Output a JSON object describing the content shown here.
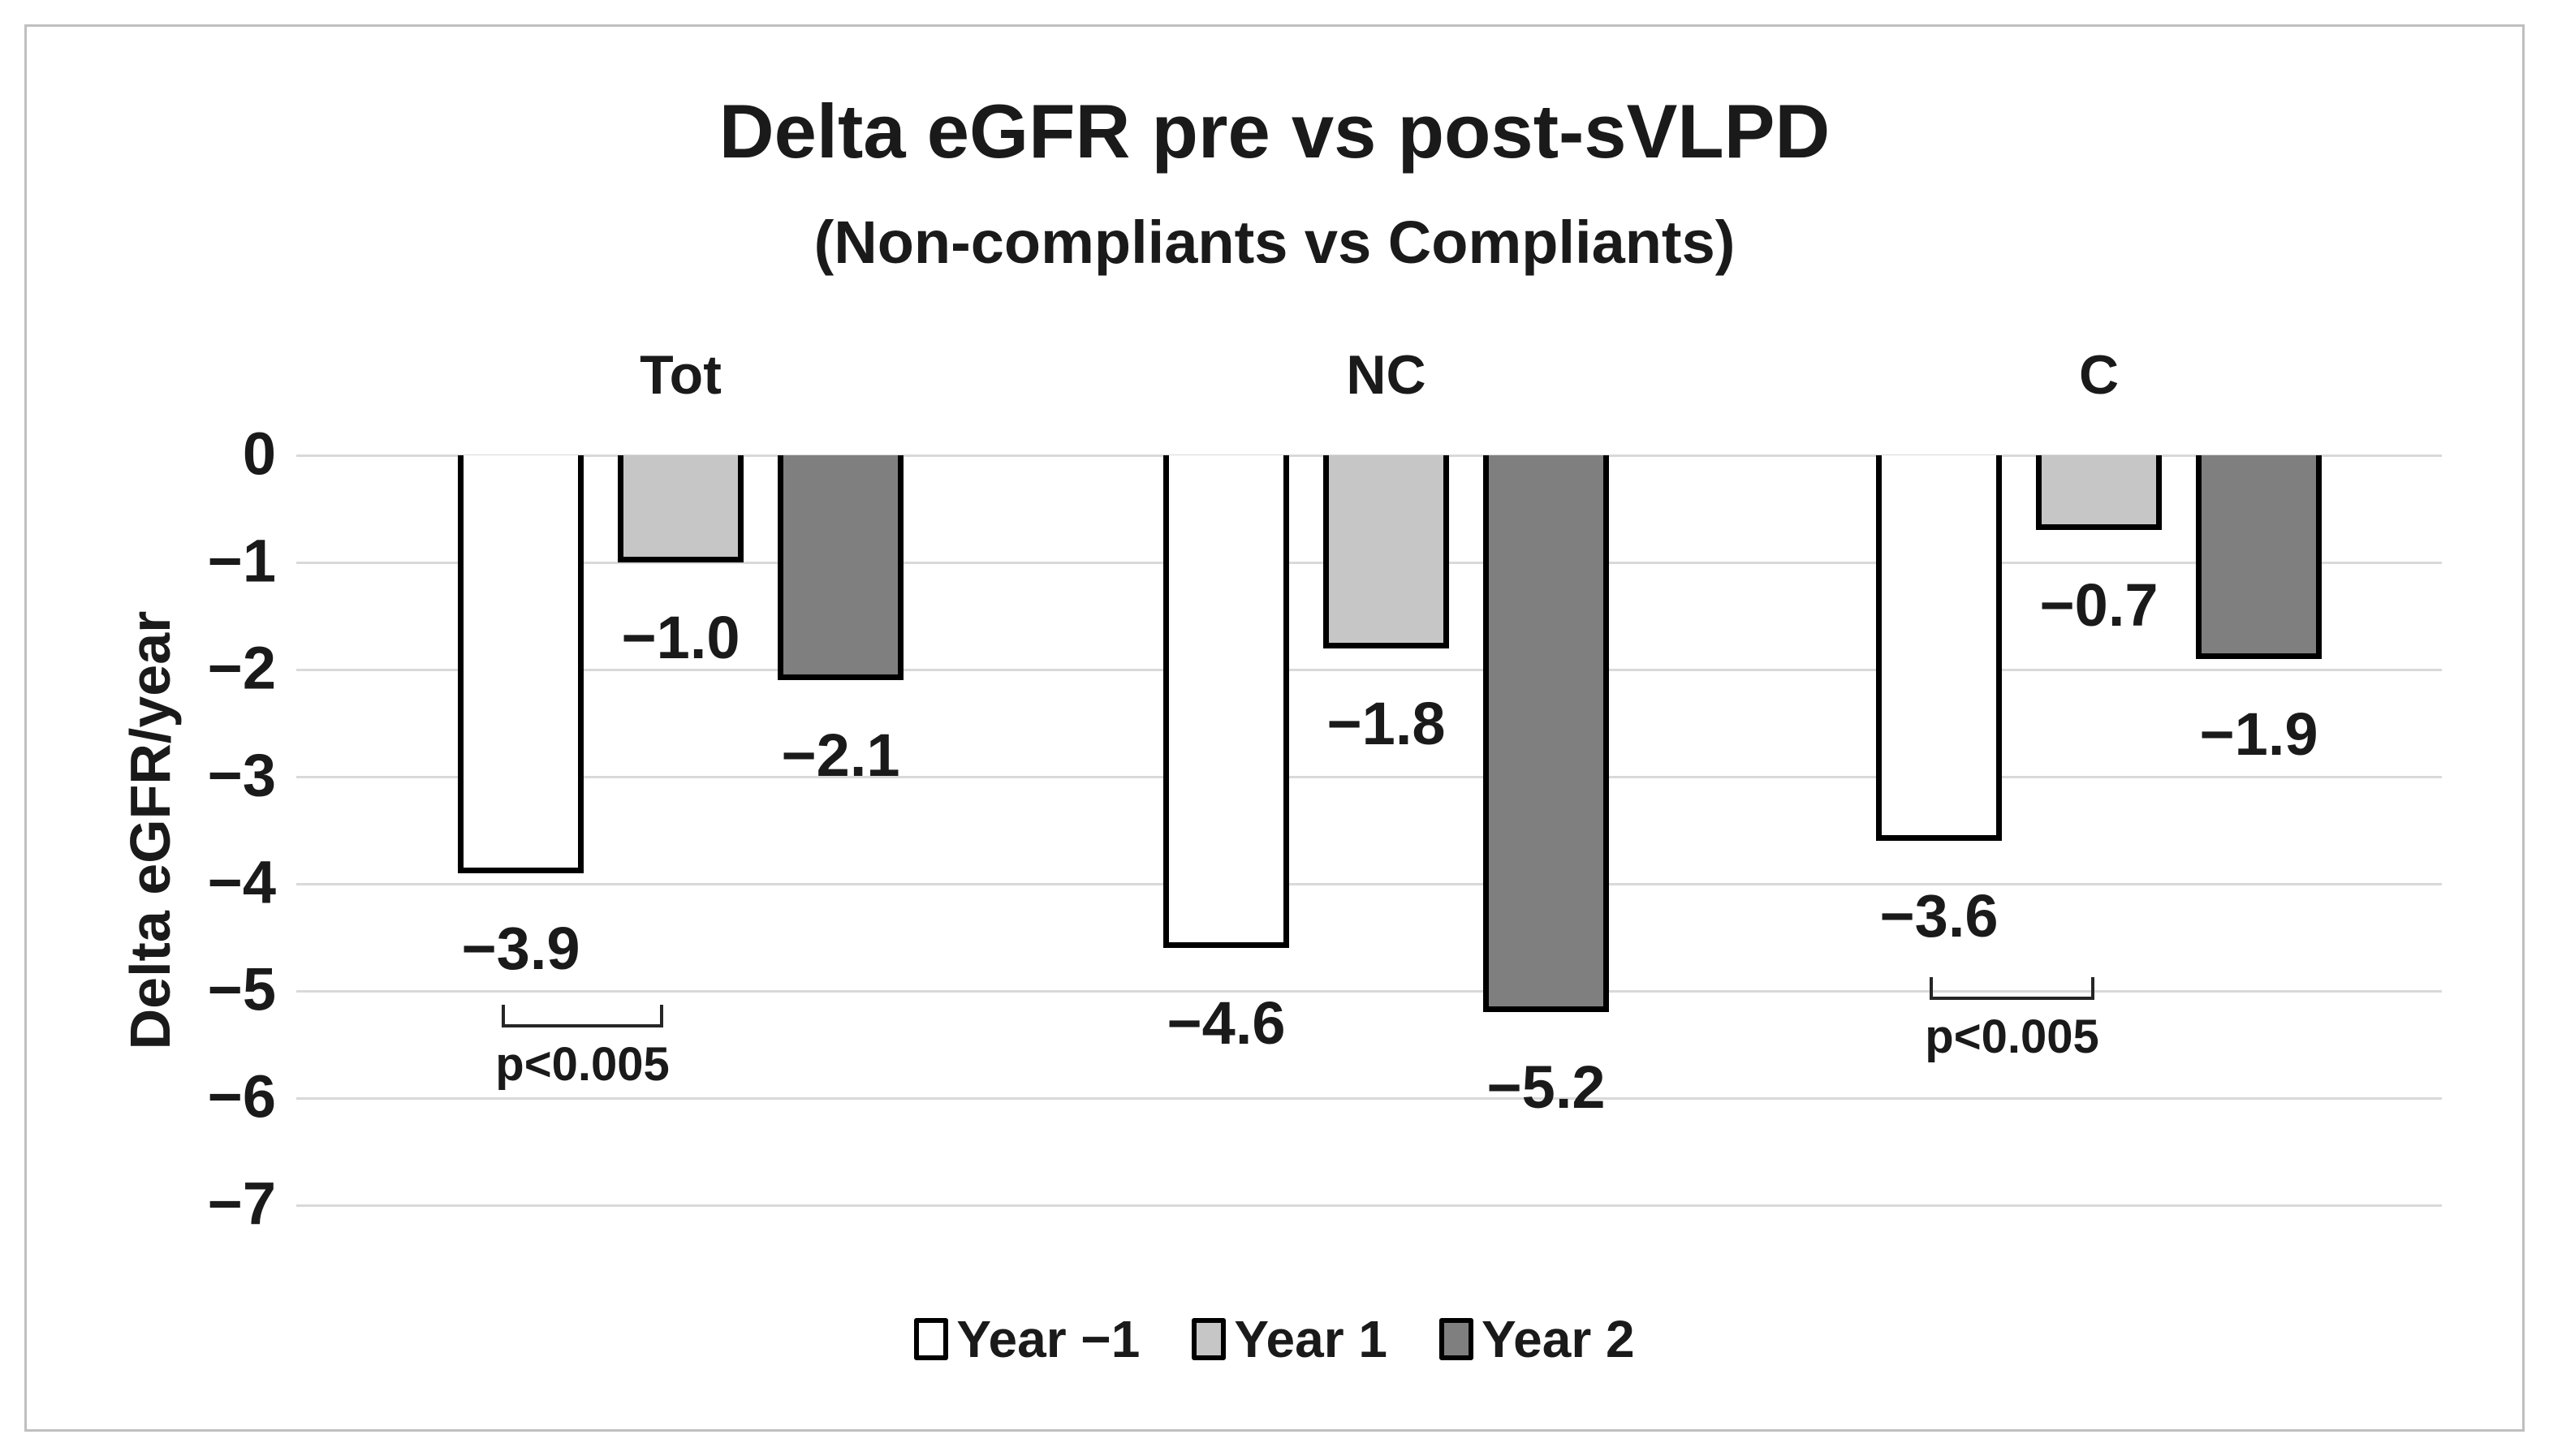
{
  "chart_data": {
    "type": "bar",
    "title": "Delta eGFR pre vs post-sVLPD",
    "subtitle": "(Non-compliants vs Compliants)",
    "ylabel": "Delta eGFR/year",
    "ylim": [
      0,
      -7
    ],
    "ytick_labels": [
      "0",
      "−1",
      "−2",
      "−3",
      "−4",
      "−5",
      "−6",
      "−7"
    ],
    "grid": true,
    "legend_position": "bottom",
    "categories": [
      "Tot",
      "NC",
      "C"
    ],
    "series": [
      {
        "name": "Year −1",
        "color": "#ffffff",
        "values": [
          -3.9,
          -4.6,
          -3.6
        ],
        "labels": [
          "−3.9",
          "−4.6",
          "−3.6"
        ]
      },
      {
        "name": "Year 1",
        "color": "#c6c6c6",
        "values": [
          -1.0,
          -1.8,
          -0.7
        ],
        "labels": [
          "−1.0",
          "−1.8",
          "−0.7"
        ]
      },
      {
        "name": "Year 2",
        "color": "#7f7f7f",
        "values": [
          -2.1,
          -5.2,
          -1.9
        ],
        "labels": [
          "−2.1",
          "−5.2",
          "−1.9"
        ]
      }
    ],
    "annotations": [
      {
        "category": "Tot",
        "text": "p<0.005"
      },
      {
        "category": "C",
        "text": "p<0.005"
      }
    ]
  },
  "colors": {
    "grid": "#d9d9d9",
    "text": "#1a1a1a",
    "bar_border": "#000000",
    "bracket": "#262626",
    "frame": "#bfbfbf"
  }
}
